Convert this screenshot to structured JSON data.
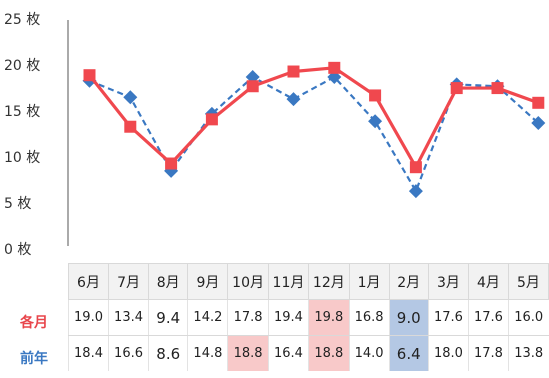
{
  "chart_data": {
    "type": "line",
    "categories": [
      "6月",
      "7月",
      "8月",
      "9月",
      "10月",
      "11月",
      "12月",
      "1月",
      "2月",
      "3月",
      "4月",
      "5月"
    ],
    "series": [
      {
        "name": "各月",
        "values": [
          19.0,
          13.4,
          9.4,
          14.2,
          17.8,
          19.4,
          19.8,
          16.8,
          9.0,
          17.6,
          17.6,
          16.0
        ],
        "color": "#f0484e",
        "style": "solid",
        "marker": "square"
      },
      {
        "name": "前年",
        "values": [
          18.4,
          16.6,
          8.6,
          14.8,
          18.8,
          16.4,
          18.8,
          14.0,
          6.4,
          18.0,
          17.8,
          13.8
        ],
        "color": "#3a78c2",
        "style": "dashed",
        "marker": "diamond"
      }
    ],
    "ylim": [
      0,
      25
    ],
    "yticks": [
      {
        "value": 0,
        "label": "0 枚"
      },
      {
        "value": 5,
        "label": "5 枚"
      },
      {
        "value": 10,
        "label": "10 枚"
      },
      {
        "value": 15,
        "label": "15 枚"
      },
      {
        "value": 20,
        "label": "20 枚"
      },
      {
        "value": 25,
        "label": "25 枚"
      }
    ],
    "grid": false,
    "legend": "table-below"
  },
  "table": {
    "row_labels": [
      "各月",
      "前年"
    ],
    "current_text": [
      "19.0",
      "13.4",
      "9.4",
      "14.2",
      "17.8",
      "19.4",
      "19.8",
      "16.8",
      "9.0",
      "17.6",
      "17.6",
      "16.0"
    ],
    "prev_text": [
      "18.4",
      "16.6",
      "8.6",
      "14.8",
      "18.8",
      "16.4",
      "18.8",
      "14.0",
      "6.4",
      "18.0",
      "17.8",
      "13.8"
    ],
    "highlight_max_color": "#f8c9c9",
    "highlight_min_color": "#b4c8e4"
  }
}
